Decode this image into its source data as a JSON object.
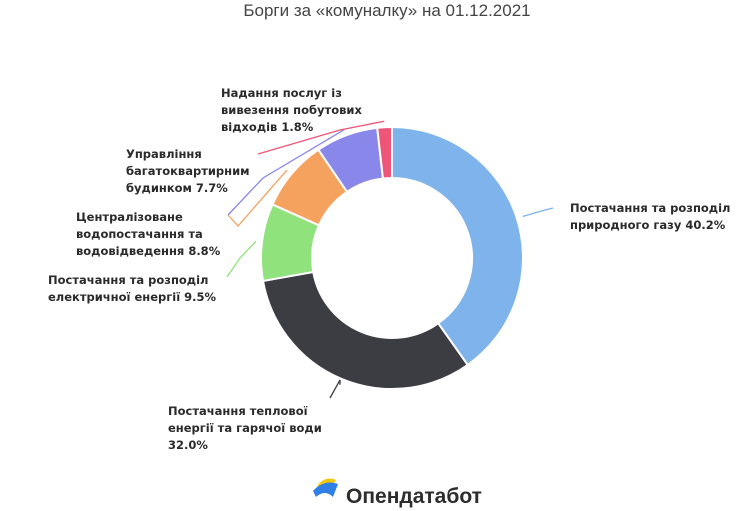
{
  "title": "Борги за «комуналку» на 01.12.2021",
  "brand": {
    "name": "Опендатабот",
    "logo_icon": "opendatabot-logo-icon"
  },
  "chart_data": {
    "type": "pie",
    "title": "Борги за «комуналку» на 01.12.2021",
    "donut": true,
    "start_angle_deg": 0,
    "direction": "clockwise",
    "legend": "none",
    "slices": [
      {
        "name": "Постачання та розподіл природного газу",
        "value": 40.2,
        "label_lines": [
          "Постачання та розподіл",
          "природного газу 40.2%"
        ],
        "color": "#7fb3eb"
      },
      {
        "name": "Постачання теплової енергії та гарячої води",
        "value": 32.0,
        "label_lines": [
          "Постачання теплової",
          "енергії та гарячої води",
          "32.0%"
        ],
        "color": "#3c3c43"
      },
      {
        "name": "Постачання та розподіл електричної енергії",
        "value": 9.5,
        "label_lines": [
          "Постачання та розподіл",
          "електричної енергії 9.5%"
        ],
        "color": "#8fe27c"
      },
      {
        "name": "Централізоване водопостачання та водовідведення",
        "value": 8.8,
        "label_lines": [
          "Централізоване",
          "водопостачання та",
          "водовідведення 8.8%"
        ],
        "color": "#f5a25e"
      },
      {
        "name": "Управління багатоквартирним будинком",
        "value": 7.7,
        "label_lines": [
          "Управління",
          "багатоквартирним",
          "будинком 7.7%"
        ],
        "color": "#8987ea"
      },
      {
        "name": "Надання послуг із вивезення побутових відходів",
        "value": 1.8,
        "label_lines": [
          "Надання послуг із",
          "вивезення побутових",
          "відходів 1.8%"
        ],
        "color": "#ee5577"
      }
    ]
  }
}
